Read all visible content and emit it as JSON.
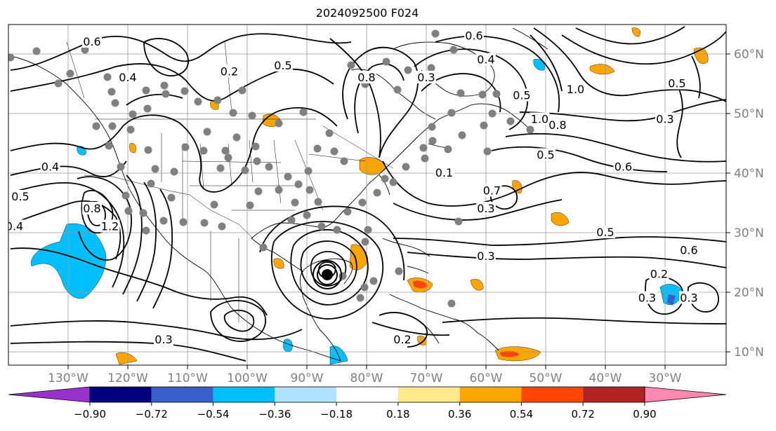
{
  "title": "2024092500 F024",
  "map": {
    "lon_labels": [
      "130°W",
      "120°W",
      "110°W",
      "100°W",
      "90°W",
      "80°W",
      "70°W",
      "60°W",
      "50°W",
      "40°W",
      "30°W"
    ],
    "lat_labels": [
      "60°N",
      "50°N",
      "40°N",
      "30°N",
      "20°N",
      "10°N"
    ],
    "contour_labels": [
      {
        "text": "0.6",
        "lon": -126,
        "lat": 62
      },
      {
        "text": "0.4",
        "lon": -120,
        "lat": 56
      },
      {
        "text": "0.2",
        "lon": -103,
        "lat": 57
      },
      {
        "text": "0.5",
        "lon": -94,
        "lat": 58
      },
      {
        "text": "0.8",
        "lon": -80,
        "lat": 56
      },
      {
        "text": "0.3",
        "lon": -70,
        "lat": 56
      },
      {
        "text": "0.6",
        "lon": -62,
        "lat": 63
      },
      {
        "text": "0.4",
        "lon": -60,
        "lat": 59
      },
      {
        "text": "0.5",
        "lon": -54,
        "lat": 53
      },
      {
        "text": "1.0",
        "lon": -45,
        "lat": 54
      },
      {
        "text": "1.0",
        "lon": -51,
        "lat": 49
      },
      {
        "text": "0.8",
        "lon": -48,
        "lat": 48
      },
      {
        "text": "0.5",
        "lon": -50,
        "lat": 43
      },
      {
        "text": "0.6",
        "lon": -37,
        "lat": 41
      },
      {
        "text": "0.3",
        "lon": -30,
        "lat": 49
      },
      {
        "text": "0.5",
        "lon": -28,
        "lat": 55
      },
      {
        "text": "0.4",
        "lon": -133,
        "lat": 41
      },
      {
        "text": "0.5",
        "lon": -138,
        "lat": 36
      },
      {
        "text": "0.4",
        "lon": -139,
        "lat": 31
      },
      {
        "text": "1.2",
        "lon": -123,
        "lat": 31
      },
      {
        "text": "0.8",
        "lon": -126,
        "lat": 34
      },
      {
        "text": "0.3",
        "lon": -114,
        "lat": 12
      },
      {
        "text": "0.1",
        "lon": -67,
        "lat": 40
      },
      {
        "text": "0.7",
        "lon": -59,
        "lat": 37
      },
      {
        "text": "0.3",
        "lon": -60,
        "lat": 34
      },
      {
        "text": "0.5",
        "lon": -40,
        "lat": 30
      },
      {
        "text": "0.3",
        "lon": -60,
        "lat": 26
      },
      {
        "text": "0.6",
        "lon": -26,
        "lat": 27
      },
      {
        "text": "0.2",
        "lon": -31,
        "lat": 23
      },
      {
        "text": "0.3",
        "lon": -26,
        "lat": 19
      },
      {
        "text": "0.3",
        "lon": -33,
        "lat": 19
      },
      {
        "text": "0.2",
        "lon": -74,
        "lat": 12
      }
    ],
    "colorbar_ticks": [
      "−0.90",
      "−0.72",
      "−0.54",
      "−0.36",
      "−0.18",
      "0.18",
      "0.36",
      "0.54",
      "0.72",
      "0.90"
    ],
    "colorbar_colors": [
      "#9932cc",
      "#00007f",
      "#3a5fcd",
      "#00bfff",
      "#b0e2ff",
      "#ffffff",
      "#ffe98a",
      "#ffa500",
      "#ff4500",
      "#b22222",
      "#ff88b0"
    ]
  }
}
